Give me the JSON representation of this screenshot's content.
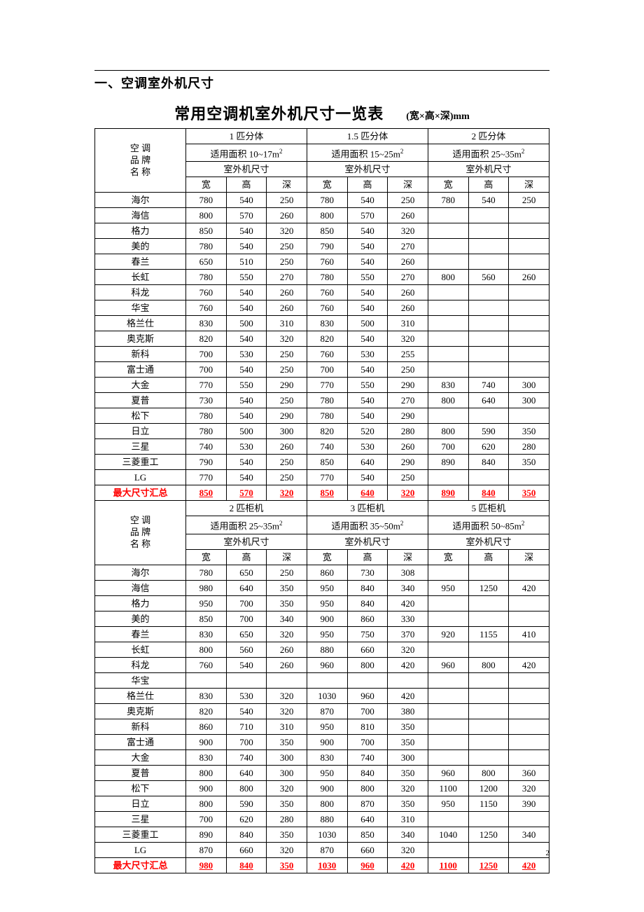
{
  "section_heading": "一、空调室外机尺寸",
  "main_title": "常用空调机室外机尺寸一览表",
  "subtitle": "(宽×高×深)mm",
  "brand_header": "空 调\n品 牌\n名 称",
  "dim_labels": {
    "w": "宽",
    "h": "高",
    "d": "深"
  },
  "outdoor_dim_label": "室外机尺寸",
  "summary_label": "最大尺寸汇总",
  "page_number": "2",
  "groups_top": [
    {
      "title": "1 匹分体",
      "area": "适用面积 10~17m²"
    },
    {
      "title": "1.5 匹分体",
      "area": "适用面积 15~25m²"
    },
    {
      "title": "2 匹分体",
      "area": "适用面积 25~35m²"
    }
  ],
  "groups_bottom": [
    {
      "title": "2 匹柜机",
      "area": "适用面积 25~35m²"
    },
    {
      "title": "3 匹柜机",
      "area": "适用面积 35~50m²"
    },
    {
      "title": "5 匹柜机",
      "area": "适用面积 50~85m²"
    }
  ],
  "brands": [
    "海尔",
    "海信",
    "格力",
    "美的",
    "春兰",
    "长虹",
    "科龙",
    "华宝",
    "格兰仕",
    "奥克斯",
    "新科",
    "富士通",
    "大金",
    "夏普",
    "松下",
    "日立",
    "三星",
    "三菱重工",
    "LG"
  ],
  "top_data": [
    [
      [
        780,
        540,
        250
      ],
      [
        780,
        540,
        250
      ],
      [
        780,
        540,
        250
      ]
    ],
    [
      [
        800,
        570,
        260
      ],
      [
        800,
        570,
        260
      ],
      [
        "",
        "",
        ""
      ]
    ],
    [
      [
        850,
        540,
        320
      ],
      [
        850,
        540,
        320
      ],
      [
        "",
        "",
        ""
      ]
    ],
    [
      [
        780,
        540,
        250
      ],
      [
        790,
        540,
        270
      ],
      [
        "",
        "",
        ""
      ]
    ],
    [
      [
        650,
        510,
        250
      ],
      [
        760,
        540,
        260
      ],
      [
        "",
        "",
        ""
      ]
    ],
    [
      [
        780,
        550,
        270
      ],
      [
        780,
        550,
        270
      ],
      [
        800,
        560,
        260
      ]
    ],
    [
      [
        760,
        540,
        260
      ],
      [
        760,
        540,
        260
      ],
      [
        "",
        "",
        ""
      ]
    ],
    [
      [
        760,
        540,
        260
      ],
      [
        760,
        540,
        260
      ],
      [
        "",
        "",
        ""
      ]
    ],
    [
      [
        830,
        500,
        310
      ],
      [
        830,
        500,
        310
      ],
      [
        "",
        "",
        ""
      ]
    ],
    [
      [
        820,
        540,
        320
      ],
      [
        820,
        540,
        320
      ],
      [
        "",
        "",
        ""
      ]
    ],
    [
      [
        700,
        530,
        250
      ],
      [
        760,
        530,
        255
      ],
      [
        "",
        "",
        ""
      ]
    ],
    [
      [
        700,
        540,
        250
      ],
      [
        700,
        540,
        250
      ],
      [
        "",
        "",
        ""
      ]
    ],
    [
      [
        770,
        550,
        290
      ],
      [
        770,
        550,
        290
      ],
      [
        830,
        740,
        300
      ]
    ],
    [
      [
        730,
        540,
        250
      ],
      [
        780,
        540,
        270
      ],
      [
        800,
        640,
        300
      ]
    ],
    [
      [
        780,
        540,
        290
      ],
      [
        780,
        540,
        290
      ],
      [
        "",
        "",
        ""
      ]
    ],
    [
      [
        780,
        500,
        300
      ],
      [
        820,
        520,
        280
      ],
      [
        800,
        590,
        350
      ]
    ],
    [
      [
        740,
        530,
        260
      ],
      [
        740,
        530,
        260
      ],
      [
        700,
        620,
        280
      ]
    ],
    [
      [
        790,
        540,
        250
      ],
      [
        850,
        640,
        290
      ],
      [
        890,
        840,
        350
      ]
    ],
    [
      [
        770,
        540,
        250
      ],
      [
        770,
        540,
        250
      ],
      [
        "",
        "",
        ""
      ]
    ]
  ],
  "top_summary": [
    [
      850,
      570,
      320
    ],
    [
      850,
      640,
      320
    ],
    [
      890,
      840,
      350
    ]
  ],
  "bottom_data": [
    [
      [
        780,
        650,
        250
      ],
      [
        860,
        730,
        308
      ],
      [
        "",
        "",
        ""
      ]
    ],
    [
      [
        980,
        640,
        350
      ],
      [
        950,
        840,
        340
      ],
      [
        950,
        1250,
        420
      ]
    ],
    [
      [
        950,
        700,
        350
      ],
      [
        950,
        840,
        420
      ],
      [
        "",
        "",
        ""
      ]
    ],
    [
      [
        850,
        700,
        340
      ],
      [
        900,
        860,
        330
      ],
      [
        "",
        "",
        ""
      ]
    ],
    [
      [
        830,
        650,
        320
      ],
      [
        950,
        750,
        370
      ],
      [
        920,
        1155,
        410
      ]
    ],
    [
      [
        800,
        560,
        260
      ],
      [
        880,
        660,
        320
      ],
      [
        "",
        "",
        ""
      ]
    ],
    [
      [
        760,
        540,
        260
      ],
      [
        960,
        800,
        420
      ],
      [
        960,
        800,
        420
      ]
    ],
    [
      [
        "",
        "",
        ""
      ],
      [
        "",
        "",
        ""
      ],
      [
        "",
        "",
        ""
      ]
    ],
    [
      [
        830,
        530,
        320
      ],
      [
        1030,
        960,
        420
      ],
      [
        "",
        "",
        ""
      ]
    ],
    [
      [
        820,
        540,
        320
      ],
      [
        870,
        700,
        380
      ],
      [
        "",
        "",
        ""
      ]
    ],
    [
      [
        860,
        710,
        310
      ],
      [
        950,
        810,
        350
      ],
      [
        "",
        "",
        ""
      ]
    ],
    [
      [
        900,
        700,
        350
      ],
      [
        900,
        700,
        350
      ],
      [
        "",
        "",
        ""
      ]
    ],
    [
      [
        830,
        740,
        300
      ],
      [
        830,
        740,
        300
      ],
      [
        "",
        "",
        ""
      ]
    ],
    [
      [
        800,
        640,
        300
      ],
      [
        950,
        840,
        350
      ],
      [
        960,
        800,
        360
      ]
    ],
    [
      [
        900,
        800,
        320
      ],
      [
        900,
        800,
        320
      ],
      [
        1100,
        1200,
        320
      ]
    ],
    [
      [
        800,
        590,
        350
      ],
      [
        800,
        870,
        350
      ],
      [
        950,
        1150,
        390
      ]
    ],
    [
      [
        700,
        620,
        280
      ],
      [
        880,
        640,
        310
      ],
      [
        "",
        "",
        ""
      ]
    ],
    [
      [
        890,
        840,
        350
      ],
      [
        1030,
        850,
        340
      ],
      [
        1040,
        1250,
        340
      ]
    ],
    [
      [
        870,
        660,
        320
      ],
      [
        870,
        660,
        320
      ],
      [
        "",
        "",
        ""
      ]
    ]
  ],
  "bottom_summary": [
    [
      980,
      840,
      350
    ],
    [
      1030,
      960,
      420
    ],
    [
      1100,
      1250,
      420
    ]
  ]
}
